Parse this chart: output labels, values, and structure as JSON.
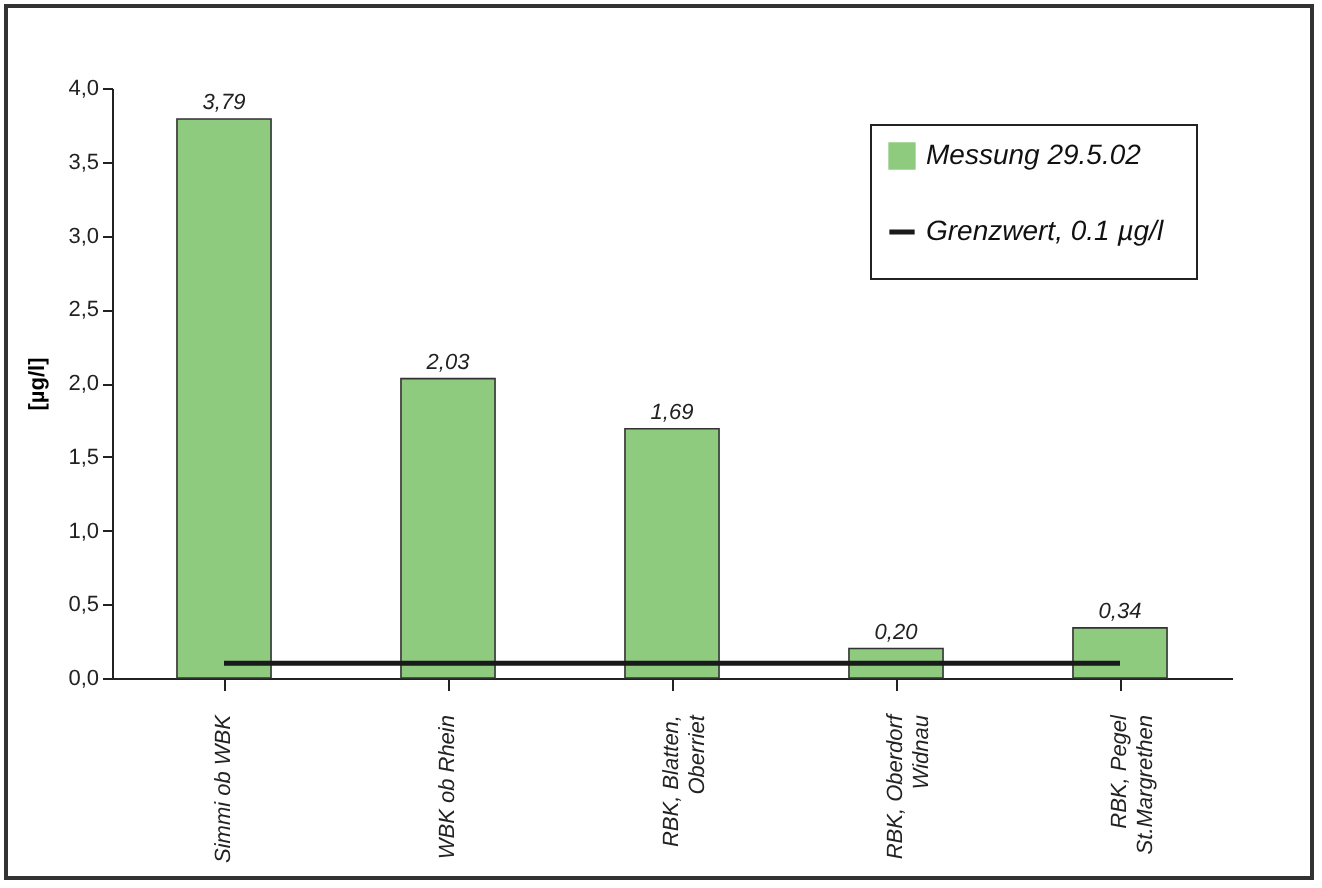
{
  "chart_data": {
    "type": "bar",
    "ylabel": "[µg/l]",
    "categories": [
      "Simmi ob WBK",
      "WBK ob Rhein",
      "RBK, Blatten,\nOberriet",
      "RBK, Oberdorf\nWidnau",
      "RBK, Pegel\nSt.Margrethen"
    ],
    "series": [
      {
        "name": "Messung 29.5.02",
        "color": "#8ecb7e",
        "values": [
          3.79,
          2.03,
          1.69,
          0.2,
          0.34
        ],
        "value_labels": [
          "3,79",
          "2,03",
          "1,69",
          "0,20",
          "0,34"
        ]
      },
      {
        "name": "Grenzwert, 0.1 µg/l",
        "type": "line",
        "color": "#1a1a1a",
        "values": [
          0.1,
          0.1,
          0.1,
          0.1,
          0.1
        ]
      }
    ],
    "ylim": [
      0,
      4
    ],
    "yticks": [
      {
        "value": 0,
        "label": "0,0"
      },
      {
        "value": 0.5,
        "label": "0,5"
      },
      {
        "value": 1,
        "label": "1,0"
      },
      {
        "value": 1.5,
        "label": "1,5"
      },
      {
        "value": 2,
        "label": "2,0"
      },
      {
        "value": 2.5,
        "label": "2,5"
      },
      {
        "value": 3,
        "label": "3,0"
      },
      {
        "value": 3.5,
        "label": "3,5"
      },
      {
        "value": 4,
        "label": "4,0"
      }
    ],
    "legend": "top right",
    "grid": false,
    "marker": "none",
    "line_style": "solid"
  }
}
